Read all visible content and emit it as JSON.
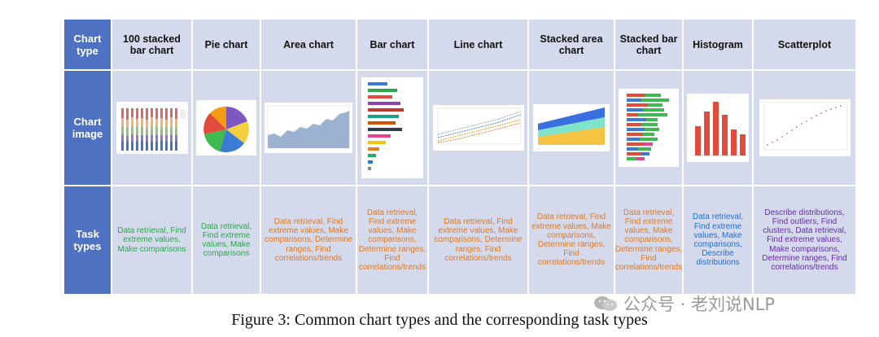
{
  "table": {
    "row_headers": {
      "type": "Chart type",
      "image": "Chart image",
      "tasks": "Task types"
    },
    "columns": [
      {
        "name": "100 stacked bar chart",
        "tasks": "Data retrieval, Find extreme values, Make comparisons",
        "color": "#2aa84a"
      },
      {
        "name": "Pie chart",
        "tasks": "Data retrieval, Find extreme values, Make comparisons",
        "color": "#2aa84a"
      },
      {
        "name": "Area chart",
        "tasks": "Data retrieval, Find extreme values, Make comparisons, Determine ranges, Find correlations/trends",
        "color": "#e07a1f"
      },
      {
        "name": "Bar chart",
        "tasks": "Data retrieval, Find extreme values, Make comparisons, Determine ranges, Find correlations/trends",
        "color": "#e07a1f"
      },
      {
        "name": "Line chart",
        "tasks": "Data retrieval, Find extreme values, Make comparisons, Determine ranges, Find correlations/trends",
        "color": "#e07a1f"
      },
      {
        "name": "Stacked area chart",
        "tasks": "Data retrieval, Find extreme values, Make comparisons, Determine ranges, Find correlations/trends",
        "color": "#e07a1f"
      },
      {
        "name": "Stacked bar chart",
        "tasks": "Data retrieval, Find extreme values, Make comparisons, Determine ranges, Find correlations/trends",
        "color": "#e07a1f"
      },
      {
        "name": "Histogram",
        "tasks": "Data retrieval, Find extreme values, Make comparisons, Describe distributions",
        "color": "#1f6fd6"
      },
      {
        "name": "Scatterplot",
        "tasks": "Describe distributions, Find outliers, Find clusters, Data retrieval, Find extreme values, Make comparisons, Determine ranges, Find correlations/trends",
        "color": "#6a2aa8"
      }
    ]
  },
  "caption": "Figure 3: Common chart types and the corresponding task types",
  "watermark": "公众号 · 老刘说NLP",
  "icons": {
    "watermark": "wechat-icon"
  },
  "colors": {
    "header_blue": "#4e71c2",
    "cell_bg": "#d4d9ec"
  }
}
